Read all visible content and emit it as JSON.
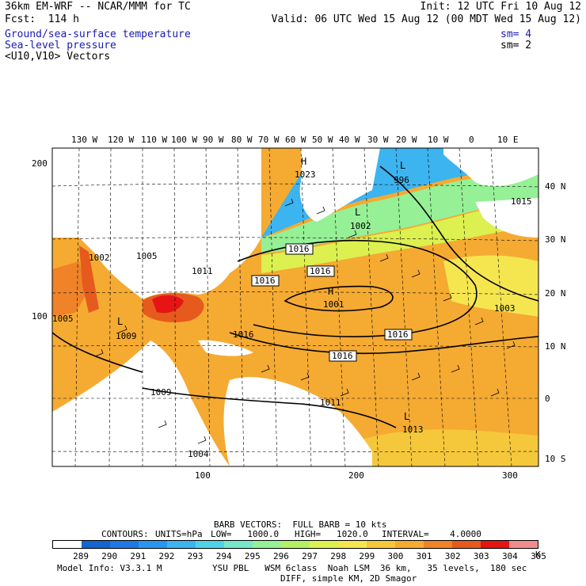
{
  "header": {
    "left_line1": "36km EM-WRF -- NCAR/MMM for TC",
    "left_line2": "Fcst:  114 h",
    "right_line1": "Init: 12 UTC Fri 10 Aug 12",
    "right_line2": "Valid: 06 UTC Wed 15 Aug 12 (00 MDT Wed 15 Aug 12)",
    "fields": [
      {
        "label": "Ground/sea-surface temperature",
        "sm": "sm= 4",
        "color": "#1a1ab4"
      },
      {
        "label": "Sea-level pressure",
        "sm": "sm= 2",
        "color": "#1a1ab4"
      },
      {
        "label": "<U10,V10> Vectors",
        "sm": "",
        "color": "#000000"
      }
    ]
  },
  "map": {
    "top_longitudes": [
      "130 W",
      "120 W",
      "110 W",
      "100 W",
      "90 W",
      "80 W",
      "70 W",
      "60 W",
      "50 W",
      "40 W",
      "30 W",
      "20 W",
      "10 W",
      "0",
      "10 E"
    ],
    "right_latitudes": [
      "40 N",
      "30 N",
      "20 N",
      "10 N",
      "0",
      "10 S"
    ],
    "left_grid_labels": [
      "200",
      "100"
    ],
    "bottom_grid_labels": [
      "100",
      "200",
      "300"
    ],
    "pressure_labels_boxed": [
      "1016",
      "1016",
      "1016",
      "1016",
      "1016"
    ],
    "pressure_labels": [
      "1023",
      "996",
      "1002",
      "1015",
      "1001",
      "1003",
      "1011",
      "1013",
      "1009",
      "1009",
      "1004",
      "1005",
      "1002",
      "1005",
      "1011",
      "1016"
    ],
    "center_markers": [
      "H",
      "L",
      "H",
      "L",
      "L",
      "L"
    ]
  },
  "legend": {
    "barb_line": "BARB VECTORS:  FULL BARB = 10 kts",
    "contours_label": "CONTOURS:",
    "units": "UNITS=hPa",
    "low": "LOW=   1000.0",
    "high": "HIGH=   1020.0",
    "interval": "INTERVAL=    4.0000",
    "unit_k": "K",
    "colorbar_values": [
      "289",
      "290",
      "291",
      "292",
      "293",
      "294",
      "295",
      "296",
      "297",
      "298",
      "299",
      "300",
      "301",
      "302",
      "303",
      "304",
      "305"
    ],
    "colorbar_colors": [
      "#ffffff",
      "#1464d2",
      "#1e78e6",
      "#2896f0",
      "#3cb4f0",
      "#50d2e6",
      "#78e6c8",
      "#96f096",
      "#b4f064",
      "#dcf050",
      "#f5e650",
      "#f5c83c",
      "#f5aa32",
      "#f08228",
      "#e65a1e",
      "#e61414",
      "#f08c8c"
    ]
  },
  "footer": {
    "model_info": "Model Info: V3.3.1 M",
    "physics": "YSU PBL   WSM 6class  Noah LSM  36 km,   35 levels,  180 sec",
    "diff": "DIFF, simple KM, 2D Smagor"
  }
}
